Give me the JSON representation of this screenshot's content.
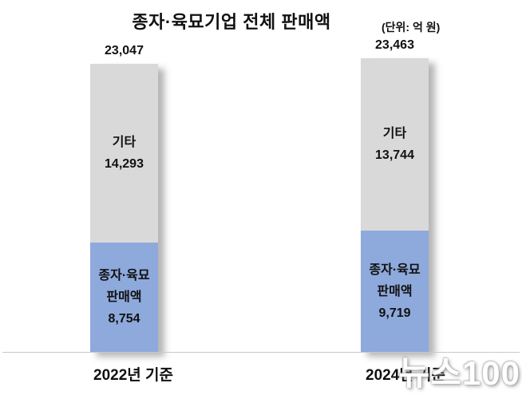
{
  "title": "종자·육묘기업 전체 판매액",
  "unit_label": "(단위: 억 원)",
  "watermark": "뉴스100",
  "colors": {
    "seed_segment": "#8ea9dc",
    "other_segment": "#d9d9d9",
    "axis_line": "#c9c9c9",
    "text": "#111111",
    "background": "#ffffff"
  },
  "chart_data": {
    "type": "bar",
    "stacked": true,
    "title": "종자·육묘기업 전체 판매액",
    "unit": "(단위: 억 원)",
    "categories": [
      "2022년 기준",
      "2024년 기준"
    ],
    "series": [
      {
        "name": "종자·육묘 판매액",
        "values": [
          8754,
          9719
        ],
        "color": "#8ea9dc"
      },
      {
        "name": "기타",
        "values": [
          14293,
          13744
        ],
        "color": "#d9d9d9"
      }
    ],
    "totals": [
      23047,
      23463
    ],
    "ylim": [
      0,
      23463
    ],
    "grid": false,
    "legend": "none",
    "value_labels": "inside segments and above bar totals"
  },
  "bars": [
    {
      "category": "2022년 기준",
      "total_label": "23,047",
      "other_name": "기타",
      "other_value": "14,293",
      "seed_name_line1": "종자·육묘",
      "seed_name_line2": "판매액",
      "seed_value": "8,754"
    },
    {
      "category": "2024년 기준",
      "total_label": "23,463",
      "other_name": "기타",
      "other_value": "13,744",
      "seed_name_line1": "종자·육묘",
      "seed_name_line2": "판매액",
      "seed_value": "9,719"
    }
  ]
}
